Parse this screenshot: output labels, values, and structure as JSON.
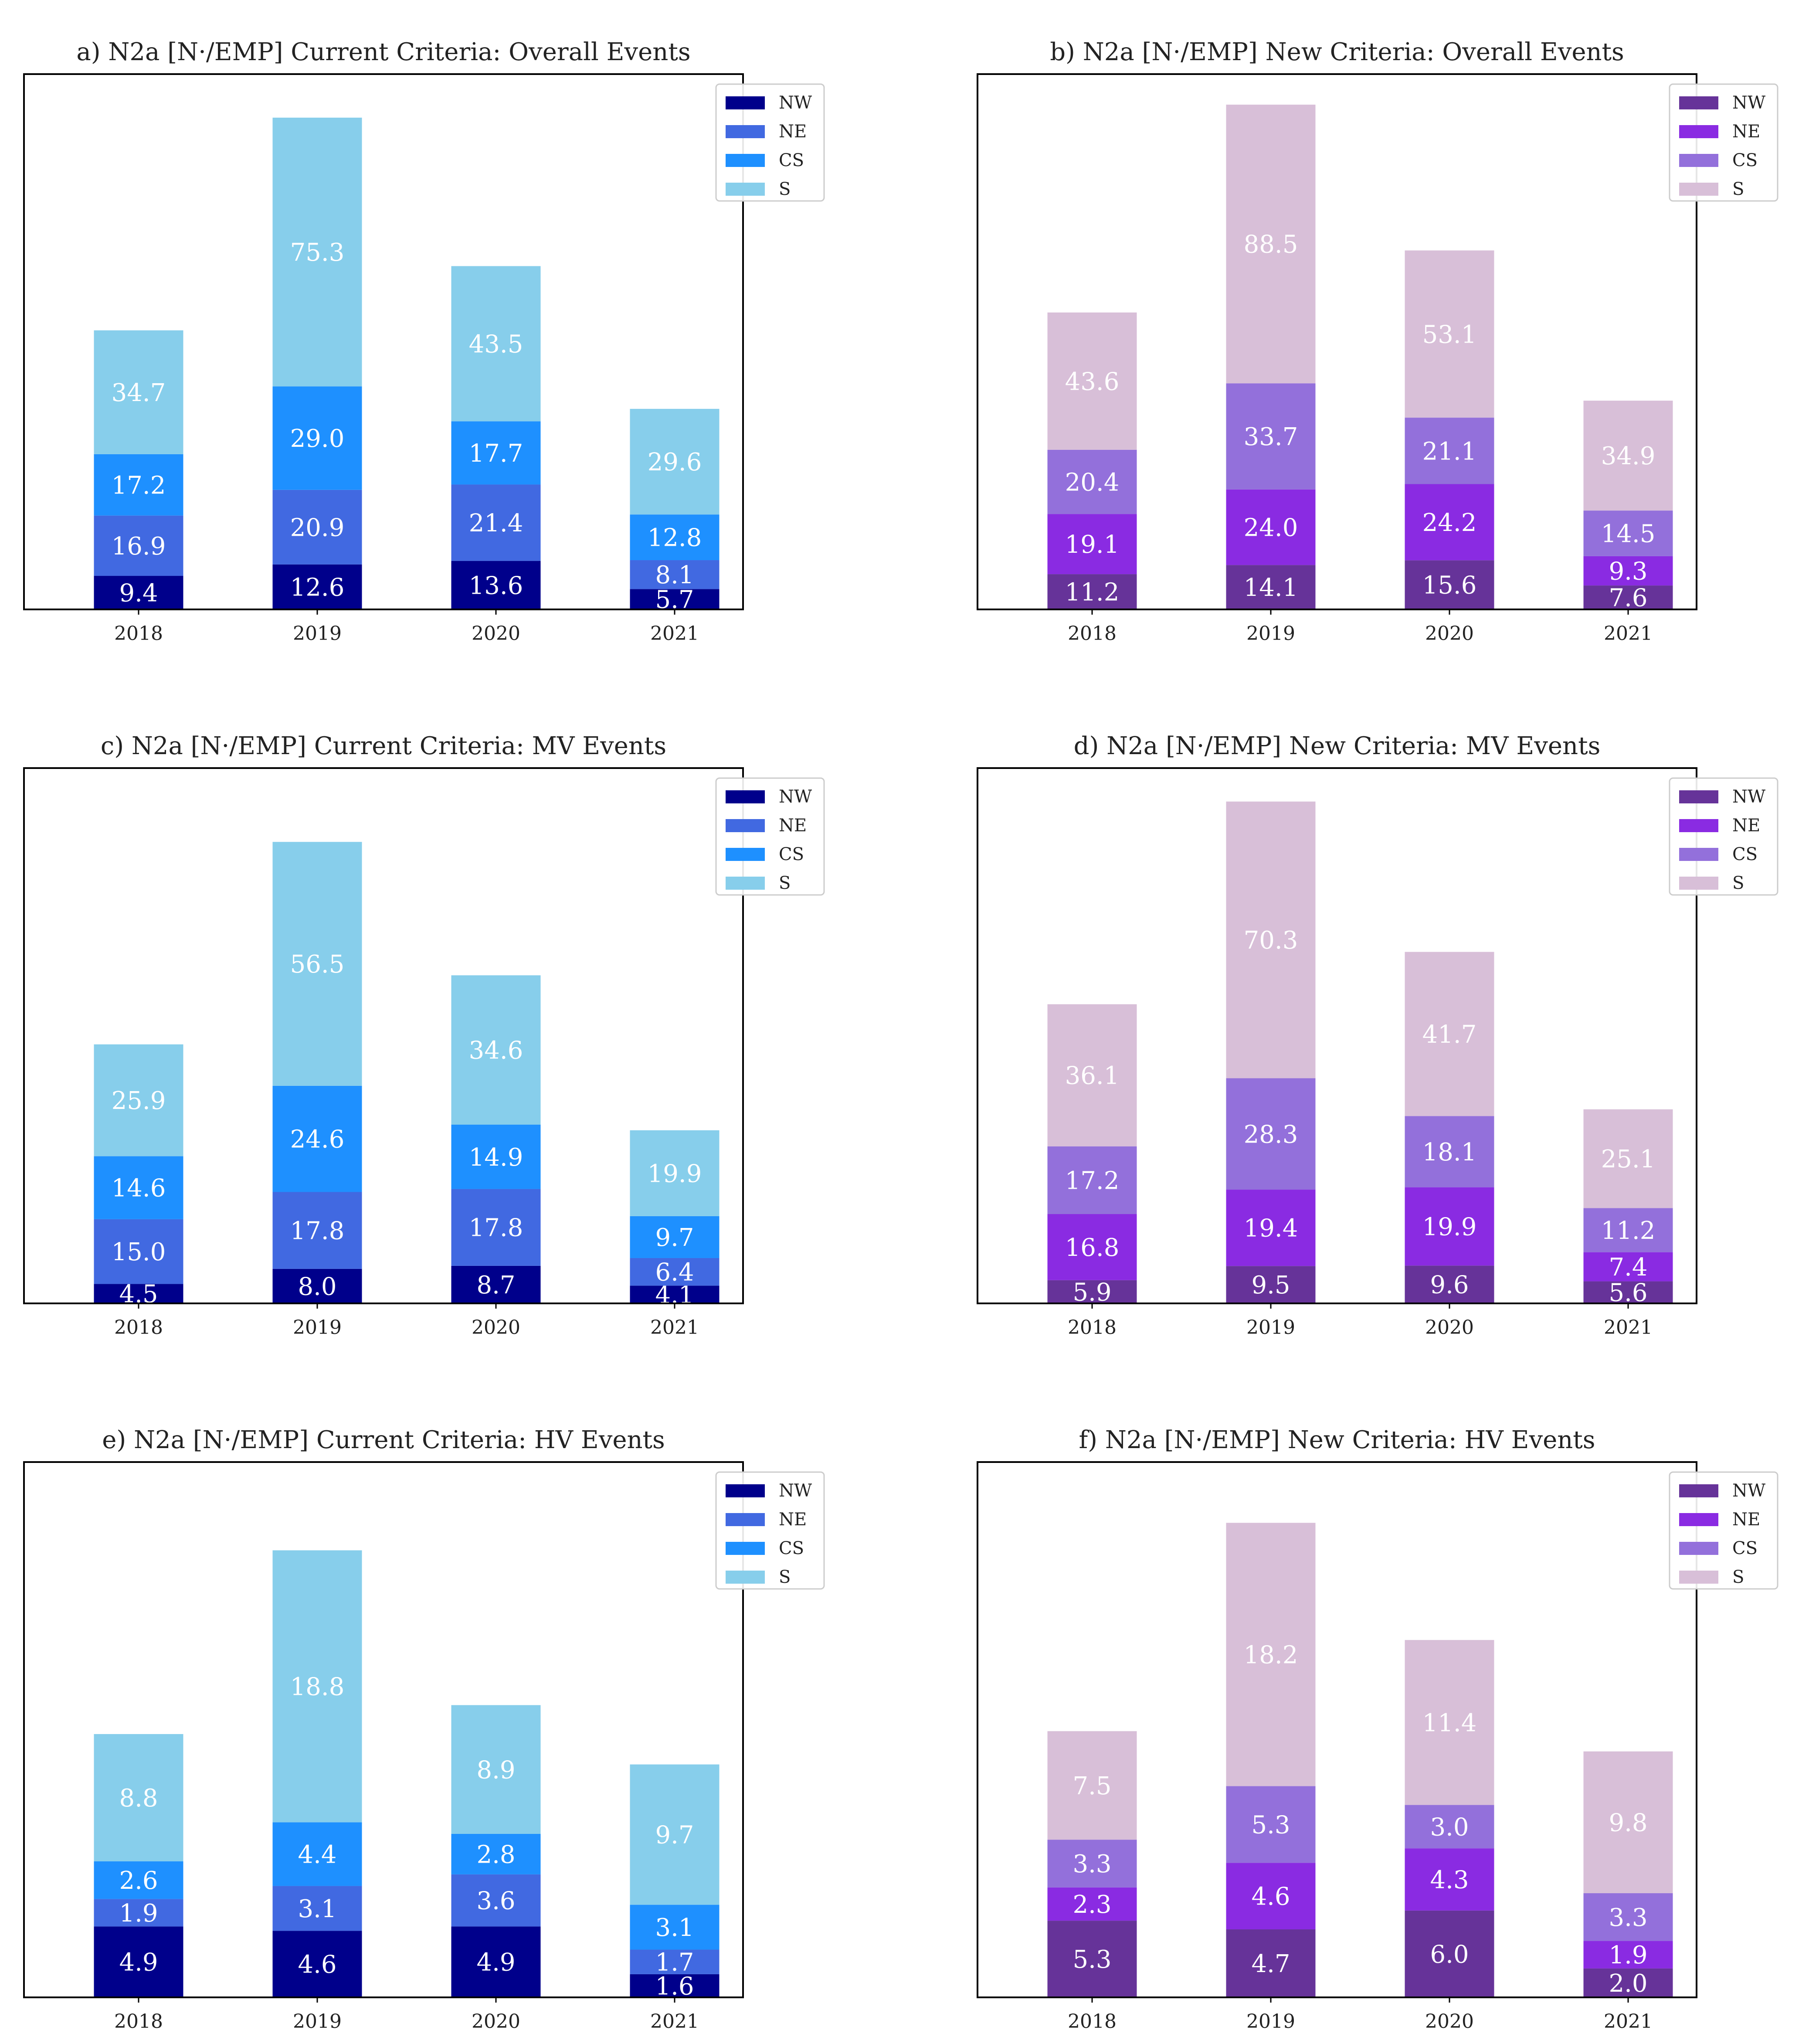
{
  "figure": {
    "colors": {
      "current": {
        "NW": "#00008B",
        "NE": "#4169E1",
        "CS": "#1E90FF",
        "S": "#87CEEB"
      },
      "new": {
        "NW": "#663399",
        "NE": "#8A2BE2",
        "CS": "#9370DB",
        "S": "#D8BFD8"
      }
    }
  },
  "chart_data": [
    {
      "type": "bar",
      "stacked": true,
      "palette": "current",
      "title": "a) N2a [N·/EMP] Current Criteria: Overall Events",
      "categories": [
        "2018",
        "2019",
        "2020",
        "2021"
      ],
      "ylim": [
        0,
        150
      ],
      "legend": {
        "placement": "top-right",
        "entries": [
          "NW",
          "NE",
          "CS",
          "S"
        ]
      },
      "series": [
        {
          "name": "NW",
          "values": [
            9.4,
            12.6,
            13.6,
            5.7
          ],
          "labels": [
            "9.4",
            "12.6",
            "13.6",
            "5.7"
          ]
        },
        {
          "name": "NE",
          "values": [
            16.9,
            20.9,
            21.4,
            8.1
          ],
          "labels": [
            "16.9",
            "20.9",
            "21.4",
            "8.1"
          ]
        },
        {
          "name": "CS",
          "values": [
            17.2,
            29.0,
            17.7,
            12.8
          ],
          "labels": [
            "17.2",
            "29.0",
            "17.7",
            "12.8"
          ]
        },
        {
          "name": "S",
          "values": [
            34.7,
            75.3,
            43.5,
            29.6
          ],
          "labels": [
            "34.7",
            "75.3",
            "43.5",
            "29.6"
          ]
        }
      ]
    },
    {
      "type": "bar",
      "stacked": true,
      "palette": "new",
      "title": "b) N2a [N·/EMP] New Criteria: Overall Events",
      "categories": [
        "2018",
        "2019",
        "2020",
        "2021"
      ],
      "ylim": [
        0,
        170
      ],
      "legend": {
        "placement": "top-right",
        "entries": [
          "NW",
          "NE",
          "CS",
          "S"
        ]
      },
      "series": [
        {
          "name": "NW",
          "values": [
            11.2,
            14.1,
            15.6,
            7.6
          ],
          "labels": [
            "11.2",
            "14.1",
            "15.6",
            "7.6"
          ]
        },
        {
          "name": "NE",
          "values": [
            19.1,
            24.0,
            24.2,
            9.3
          ],
          "labels": [
            "19.1",
            "24.0",
            "24.2",
            "9.3"
          ]
        },
        {
          "name": "CS",
          "values": [
            20.4,
            33.7,
            21.1,
            14.5
          ],
          "labels": [
            "20.4",
            "33.7",
            "21.1",
            "14.5"
          ]
        },
        {
          "name": "S",
          "values": [
            43.6,
            88.5,
            53.1,
            34.9
          ],
          "labels": [
            "43.6",
            "88.5",
            "53.1",
            "34.9"
          ]
        }
      ]
    },
    {
      "type": "bar",
      "stacked": true,
      "palette": "current",
      "title": "c) N2a [N·/EMP] Current Criteria: MV Events",
      "categories": [
        "2018",
        "2019",
        "2020",
        "2021"
      ],
      "ylim": [
        0,
        124
      ],
      "legend": {
        "placement": "top-right",
        "entries": [
          "NW",
          "NE",
          "CS",
          "S"
        ]
      },
      "series": [
        {
          "name": "NW",
          "values": [
            4.5,
            8.0,
            8.7,
            4.1
          ],
          "labels": [
            "4.5",
            "8.0",
            "8.7",
            "4.1"
          ]
        },
        {
          "name": "NE",
          "values": [
            15.0,
            17.8,
            17.8,
            6.4
          ],
          "labels": [
            "15.0",
            "17.8",
            "17.8",
            "6.4"
          ]
        },
        {
          "name": "CS",
          "values": [
            14.6,
            24.6,
            14.9,
            9.7
          ],
          "labels": [
            "14.6",
            "24.6",
            "14.9",
            "9.7"
          ]
        },
        {
          "name": "S",
          "values": [
            25.9,
            56.5,
            34.6,
            19.9
          ],
          "labels": [
            "25.9",
            "56.5",
            "34.6",
            "19.9"
          ]
        }
      ]
    },
    {
      "type": "bar",
      "stacked": true,
      "palette": "new",
      "title": "d) N2a [N·/EMP] New Criteria: MV Events",
      "categories": [
        "2018",
        "2019",
        "2020",
        "2021"
      ],
      "ylim": [
        0,
        136
      ],
      "legend": {
        "placement": "top-right",
        "entries": [
          "NW",
          "NE",
          "CS",
          "S"
        ]
      },
      "series": [
        {
          "name": "NW",
          "values": [
            5.9,
            9.5,
            9.6,
            5.6
          ],
          "labels": [
            "5.9",
            "9.5",
            "9.6",
            "5.6"
          ]
        },
        {
          "name": "NE",
          "values": [
            16.8,
            19.4,
            19.9,
            7.4
          ],
          "labels": [
            "16.8",
            "19.4",
            "19.9",
            "7.4"
          ]
        },
        {
          "name": "CS",
          "values": [
            17.2,
            28.3,
            18.1,
            11.2
          ],
          "labels": [
            "17.2",
            "28.3",
            "18.1",
            "11.2"
          ]
        },
        {
          "name": "S",
          "values": [
            36.1,
            70.3,
            41.7,
            25.1
          ],
          "labels": [
            "36.1",
            "70.3",
            "41.7",
            "25.1"
          ]
        }
      ]
    },
    {
      "type": "bar",
      "stacked": true,
      "palette": "current",
      "title": "e) N2a [N·/EMP] Current Criteria: HV Events",
      "categories": [
        "2018",
        "2019",
        "2020",
        "2021"
      ],
      "ylim": [
        0,
        37
      ],
      "legend": {
        "placement": "top-right",
        "entries": [
          "NW",
          "NE",
          "CS",
          "S"
        ]
      },
      "series": [
        {
          "name": "NW",
          "values": [
            4.9,
            4.6,
            4.9,
            1.6
          ],
          "labels": [
            "4.9",
            "4.6",
            "4.9",
            "1.6"
          ]
        },
        {
          "name": "NE",
          "values": [
            1.9,
            3.1,
            3.6,
            1.7
          ],
          "labels": [
            "1.9",
            "3.1",
            "3.6",
            "1.7"
          ]
        },
        {
          "name": "CS",
          "values": [
            2.6,
            4.4,
            2.8,
            3.1
          ],
          "labels": [
            "2.6",
            "4.4",
            "2.8",
            "3.1"
          ]
        },
        {
          "name": "S",
          "values": [
            8.8,
            18.8,
            8.9,
            9.7
          ],
          "labels": [
            "8.8",
            "18.8",
            "8.9",
            "9.7"
          ]
        }
      ]
    },
    {
      "type": "bar",
      "stacked": true,
      "palette": "new",
      "title": "f) N2a [N·/EMP] New Criteria: HV Events",
      "categories": [
        "2018",
        "2019",
        "2020",
        "2021"
      ],
      "ylim": [
        0,
        37
      ],
      "legend": {
        "placement": "top-right",
        "entries": [
          "NW",
          "NE",
          "CS",
          "S"
        ]
      },
      "series": [
        {
          "name": "NW",
          "values": [
            5.3,
            4.7,
            6.0,
            2.0
          ],
          "labels": [
            "5.3",
            "4.7",
            "6.0",
            "2.0"
          ]
        },
        {
          "name": "NE",
          "values": [
            2.3,
            4.6,
            4.3,
            1.9
          ],
          "labels": [
            "2.3",
            "4.6",
            "4.3",
            "1.9"
          ]
        },
        {
          "name": "CS",
          "values": [
            3.3,
            5.3,
            3.0,
            3.3
          ],
          "labels": [
            "3.3",
            "5.3",
            "3.0",
            "3.3"
          ]
        },
        {
          "name": "S",
          "values": [
            7.5,
            18.2,
            11.4,
            9.8
          ],
          "labels": [
            "7.5",
            "18.2",
            "11.4",
            "9.8"
          ]
        }
      ]
    }
  ]
}
